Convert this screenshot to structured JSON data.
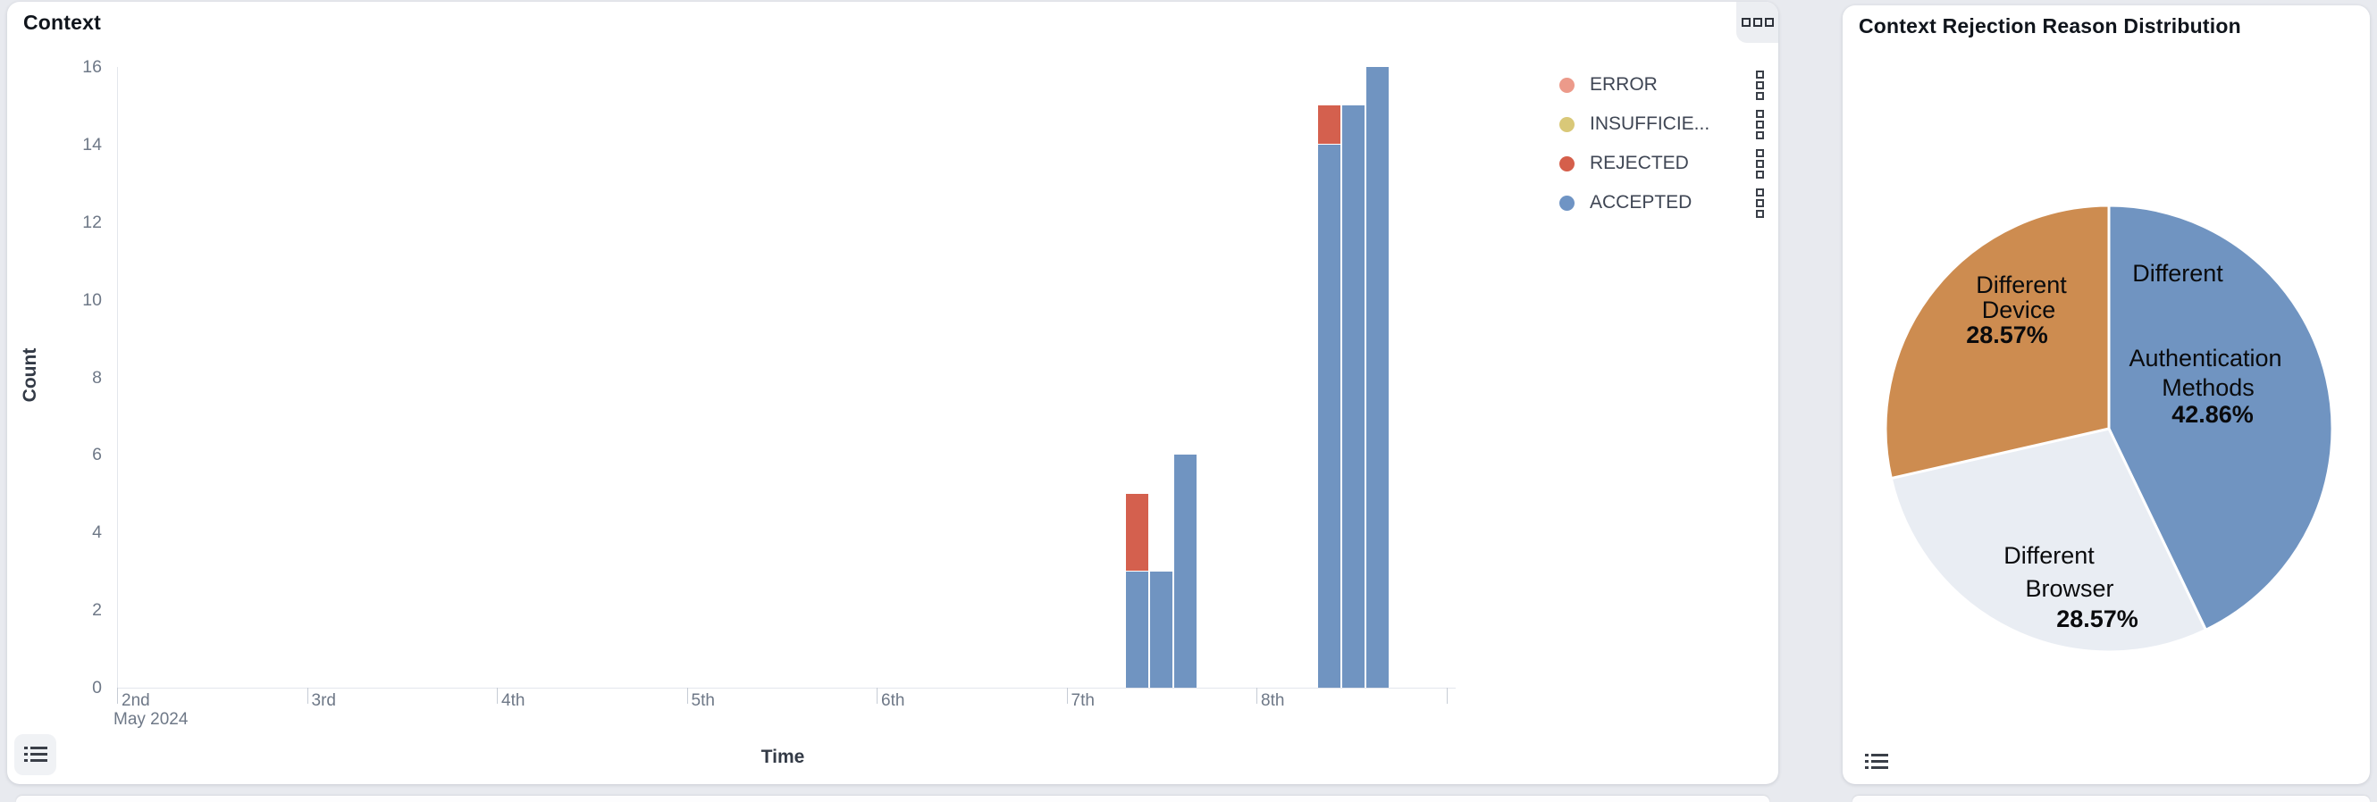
{
  "page": {
    "background": "#e8eaef"
  },
  "left_panel": {
    "title": "Context",
    "ylabel": "Count",
    "xlabel": "Time",
    "x_sub_label": "May 2024",
    "legend": {
      "items": [
        {
          "label": "ERROR",
          "color": "#ec9a8a"
        },
        {
          "label": "INSUFFICIE...",
          "color": "#d9c878"
        },
        {
          "label": "REJECTED",
          "color": "#d55f4b"
        },
        {
          "label": "ACCEPTED",
          "color": "#6f94c4"
        }
      ]
    }
  },
  "right_panel": {
    "title": "Context Rejection Reason Distribution",
    "labels": {
      "device": {
        "line1": "Different",
        "line2": "Device",
        "pct": "28.57%"
      },
      "auth": {
        "line1": "Different",
        "line2": "Authentication",
        "line3": "Methods",
        "pct": "42.86%"
      },
      "browser": {
        "line1": "Different",
        "line2": "Browser",
        "pct": "28.57%"
      }
    }
  },
  "chart_data": [
    {
      "type": "bar",
      "stacked": true,
      "title": "Context",
      "xlabel": "Time",
      "ylabel": "Count",
      "ylim": [
        0,
        16
      ],
      "y_ticks": [
        0,
        2,
        4,
        6,
        8,
        10,
        12,
        14,
        16
      ],
      "x_tick_labels": [
        "2nd",
        "3rd",
        "4th",
        "5th",
        "6th",
        "7th",
        "8th"
      ],
      "x_axis_start": "2nd May 2024",
      "series_legend": [
        "ERROR",
        "INSUFFICIE...",
        "REJECTED",
        "ACCEPTED"
      ],
      "colors": {
        "ACCEPTED": "#7094c1",
        "REJECTED": "#d4604e",
        "ERROR": "#ec9a8a",
        "INSUFFICIENT": "#d9c878"
      },
      "grid": false,
      "legend_position": "right",
      "bars": [
        {
          "day": "7th",
          "day_fraction": 0.315,
          "ACCEPTED": 3,
          "REJECTED": 2
        },
        {
          "day": "7th",
          "day_fraction": 0.442,
          "ACCEPTED": 3,
          "REJECTED": 0
        },
        {
          "day": "7th",
          "day_fraction": 0.569,
          "ACCEPTED": 6,
          "REJECTED": 0
        },
        {
          "day": "8th",
          "day_fraction": 0.325,
          "ACCEPTED": 14,
          "REJECTED": 1
        },
        {
          "day": "8th",
          "day_fraction": 0.452,
          "ACCEPTED": 15,
          "REJECTED": 0
        },
        {
          "day": "8th",
          "day_fraction": 0.579,
          "ACCEPTED": 16,
          "REJECTED": 0
        }
      ]
    },
    {
      "type": "pie",
      "title": "Context Rejection Reason Distribution",
      "start_angle": "12-o-clock",
      "clockwise": true,
      "slices": [
        {
          "label": "Different Authentication Methods",
          "pct": 42.86,
          "color": "#7094c1"
        },
        {
          "label": "Different Browser",
          "pct": 28.57,
          "color": "#e9edf3"
        },
        {
          "label": "Different Device",
          "pct": 28.57,
          "color": "#cd8c50"
        }
      ]
    }
  ]
}
